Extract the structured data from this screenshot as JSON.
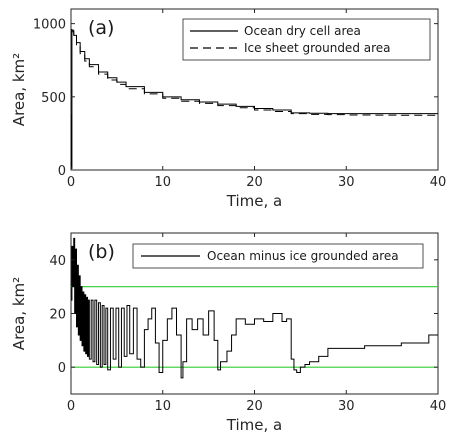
{
  "chart_data": [
    {
      "type": "line",
      "panel_label": "(a)",
      "xlabel": "Time, a",
      "ylabel": "Area, km²",
      "xlim": [
        0,
        40
      ],
      "ylim": [
        0,
        1100
      ],
      "xticks": [
        0,
        10,
        20,
        30,
        40
      ],
      "yticks": [
        0,
        500,
        1000
      ],
      "legend_position": "top-right",
      "series": [
        {
          "name": "Ocean dry cell area",
          "style": "solid",
          "color": "#000000",
          "x": [
            0,
            0.05,
            0.1,
            0.3,
            0.6,
            1.0,
            1.5,
            2.0,
            3.0,
            4.0,
            5.0,
            6.0,
            8.0,
            10.0,
            12.0,
            14.0,
            16.0,
            18.0,
            20.0,
            22.0,
            24.0,
            26.0,
            28.0,
            30.0,
            33.0,
            36.0,
            40.0
          ],
          "y": [
            380,
            10,
            955,
            920,
            870,
            810,
            760,
            720,
            670,
            630,
            600,
            570,
            530,
            500,
            480,
            465,
            450,
            435,
            420,
            410,
            390,
            388,
            385,
            385,
            385,
            385,
            385
          ]
        },
        {
          "name": "Ice sheet grounded area",
          "style": "dashed",
          "color": "#000000",
          "x": [
            0,
            0.1,
            0.3,
            0.6,
            1.0,
            1.5,
            2.0,
            3.0,
            4.0,
            5.0,
            6.0,
            8.0,
            10.0,
            12.0,
            14.0,
            16.0,
            18.0,
            20.0,
            22.0,
            24.0,
            26.0,
            28.0,
            30.0,
            33.0,
            36.0,
            40.0
          ],
          "y": [
            960,
            945,
            905,
            855,
            795,
            745,
            705,
            655,
            615,
            585,
            555,
            520,
            490,
            470,
            455,
            440,
            425,
            410,
            400,
            385,
            380,
            378,
            376,
            375,
            374,
            372
          ]
        }
      ]
    },
    {
      "type": "line",
      "panel_label": "(b)",
      "xlabel": "Time, a",
      "ylabel": "Area, km²",
      "xlim": [
        0,
        40
      ],
      "ylim": [
        -10,
        50
      ],
      "xticks": [
        0,
        10,
        20,
        30,
        40
      ],
      "yticks": [
        0,
        20,
        40
      ],
      "reference_lines": [
        0,
        30
      ],
      "reference_color": "#33cc33",
      "legend_position": "top-right",
      "series": [
        {
          "name": "Ocean minus ice grounded area",
          "style": "solid",
          "color": "#000000",
          "x": [
            0,
            0.1,
            0.2,
            0.3,
            0.4,
            0.5,
            0.6,
            0.7,
            0.8,
            0.9,
            1.0,
            1.1,
            1.2,
            1.3,
            1.4,
            1.5,
            1.6,
            1.7,
            1.8,
            1.9,
            2.0,
            2.2,
            2.4,
            2.6,
            2.8,
            3.0,
            3.2,
            3.4,
            3.6,
            3.8,
            4.0,
            4.3,
            4.6,
            4.9,
            5.2,
            5.5,
            5.8,
            6.1,
            6.4,
            6.8,
            7.2,
            7.6,
            8.0,
            8.4,
            8.8,
            9.2,
            9.6,
            10.0,
            10.5,
            11.0,
            11.5,
            12.0,
            12.2,
            12.6,
            13.2,
            13.8,
            14.4,
            15.0,
            15.6,
            16.0,
            16.3,
            17.0,
            17.5,
            18.0,
            19.0,
            20.0,
            21.0,
            22.0,
            23.0,
            23.5,
            24.0,
            24.3,
            24.6,
            25.0,
            25.5,
            26.0,
            27.0,
            28.0,
            30.0,
            32.0,
            34.0,
            36.0,
            38.0,
            39.0,
            40.0
          ],
          "y": [
            25,
            45,
            30,
            48,
            20,
            44,
            15,
            38,
            12,
            34,
            10,
            30,
            8,
            28,
            6,
            27,
            5,
            26,
            4,
            25,
            3,
            25,
            2,
            25,
            1,
            24,
            0,
            23,
            1,
            22,
            -1,
            22,
            3,
            22,
            0,
            22,
            4,
            23,
            5,
            22,
            3,
            0,
            14,
            18,
            22,
            9,
            -2,
            10,
            18,
            22,
            12,
            -4,
            2,
            18,
            14,
            18,
            12,
            21,
            10,
            -1,
            2,
            6,
            12,
            18,
            16,
            18,
            17,
            20,
            17,
            18,
            3,
            -1,
            -2,
            0,
            1,
            2,
            4,
            7,
            7,
            8,
            8,
            9,
            9,
            12,
            12
          ]
        }
      ]
    }
  ]
}
